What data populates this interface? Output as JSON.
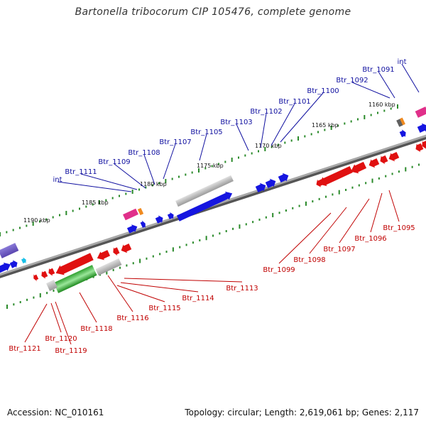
{
  "title": "Bartonella tribocorum CIP 105476, complete genome",
  "footer": {
    "accession": "Accession: NC_010161",
    "summary": "Topology: circular; Length: 2,619,061 bp; Genes: 2,117"
  },
  "colors": {
    "backbone": "#808080",
    "forward_label": "#1010a0",
    "reverse_label": "#c00000",
    "tick": "#2a8a2a",
    "forward_gene": "#1515e0",
    "reverse_gene": "#e01010"
  },
  "scale_labels": [
    "1160 kbp",
    "1165 kbp",
    "1170 kbp",
    "1175 kbp",
    "1180 kbp",
    "1185 kbp",
    "1190 kbp"
  ],
  "forward_labels": [
    "int",
    "Btr_1091",
    "Btr_1092",
    "Btr_1100",
    "Btr_1101",
    "Btr_1102",
    "Btr_1103",
    "Btr_1105",
    "Btr_1107",
    "Btr_1108",
    "Btr_1109",
    "Btr_1111",
    "int"
  ],
  "reverse_labels": [
    "Btr_1095",
    "Btr_1096",
    "Btr_1097",
    "Btr_1098",
    "Btr_1099",
    "Btr_1113",
    "Btr_1114",
    "Btr_1115",
    "Btr_1116",
    "Btr_1118",
    "Btr_1119",
    "Btr_1120",
    "Btr_1121"
  ]
}
